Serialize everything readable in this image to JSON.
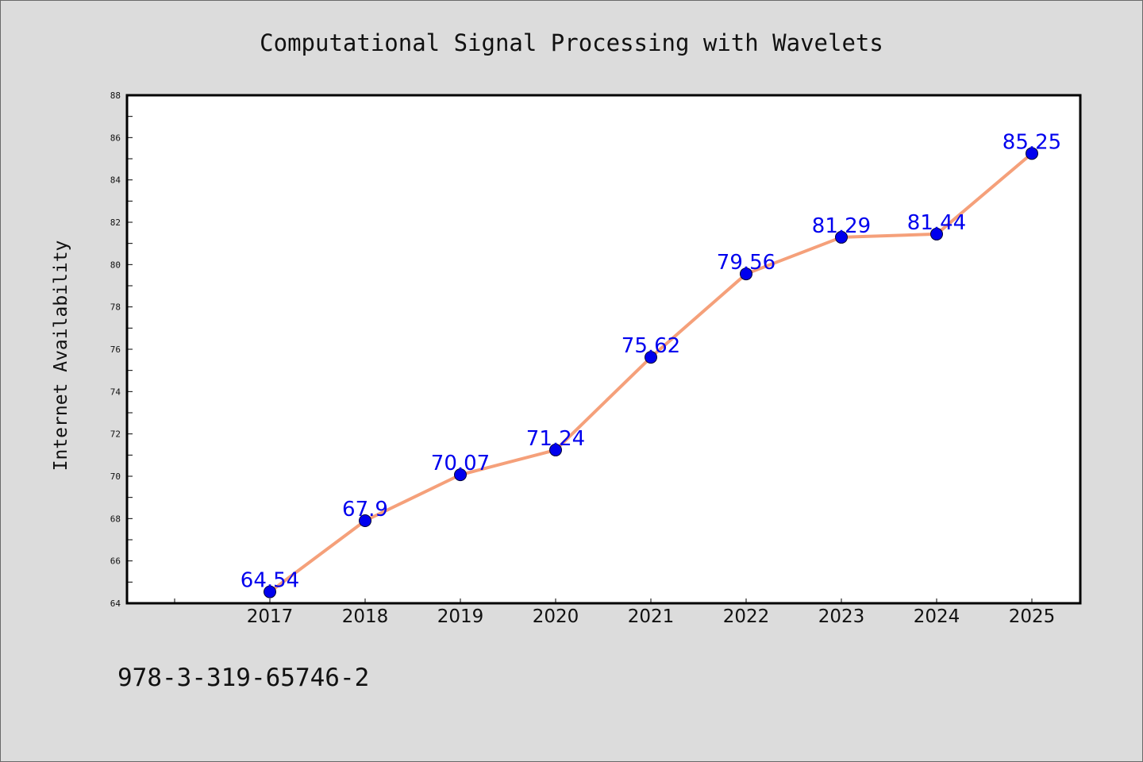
{
  "chart_data": {
    "type": "line",
    "title": "Computational Signal Processing with Wavelets",
    "xlabel": "",
    "ylabel": "Internet Availability",
    "categories": [
      "2017",
      "2018",
      "2019",
      "2020",
      "2021",
      "2022",
      "2023",
      "2024",
      "2025"
    ],
    "series": [
      {
        "values": [
          64.54,
          67.9,
          70.07,
          71.24,
          75.62,
          79.56,
          81.29,
          81.44,
          85.25
        ],
        "data_labels": [
          "64.54",
          "67.9",
          "70.07",
          "71.24",
          "75.62",
          "79.56",
          "81.29",
          "81.44",
          "85.25"
        ],
        "line_color": "#f5a07a",
        "marker_color": "#0000ee",
        "label_color": "#0000ee"
      }
    ],
    "ylim": [
      64,
      88
    ],
    "yticks": [
      "64",
      "66",
      "68",
      "70",
      "72",
      "74",
      "76",
      "78",
      "80",
      "82",
      "84",
      "86",
      "88"
    ],
    "grid": false,
    "legend": "none"
  },
  "footnote": "978-3-319-65746-2",
  "colors": {
    "background": "#dcdcdc",
    "plot_background": "#ffffff",
    "axis": "#000000"
  }
}
